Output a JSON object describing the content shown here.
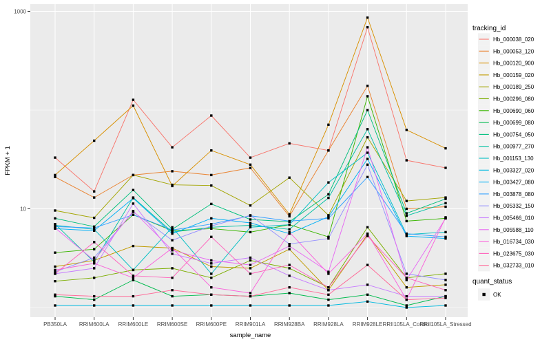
{
  "chart_data": {
    "type": "line",
    "title": "",
    "xlabel": "sample_name",
    "ylabel": "FPKM + 1",
    "y_scale": "log10",
    "ylim": [
      1,
      1000
    ],
    "y_tick_labels": [
      "1000",
      "10"
    ],
    "y_major_gridlines": [
      10,
      1000
    ],
    "y_minor_gridlines": [
      1,
      100
    ],
    "grid": "on",
    "legend_position": "right",
    "legend_title": "tracking_id",
    "point_marker": "filled-black-square",
    "categories": [
      "PB350LA",
      "RRIM600LA",
      "RRIM600LE",
      "RRIM600SE",
      "RRIM600PE",
      "RRIM901LA",
      "RRIM928BA",
      "RRIM928LA",
      "RRIM928LE",
      "RRII105LA_Control",
      "RRII105LA_Stressed"
    ],
    "series": [
      {
        "name": "Hb_000038_020",
        "color": "#F8766D",
        "values": [
          33,
          15,
          127,
          42,
          88,
          33,
          46,
          39,
          690,
          31,
          26
        ]
      },
      {
        "name": "Hb_000053_120",
        "color": "#EA8331",
        "values": [
          21,
          13,
          22,
          24,
          22,
          26,
          8.4,
          39,
          176,
          10,
          10.5
        ]
      },
      {
        "name": "Hb_000120_900",
        "color": "#D89000",
        "values": [
          22,
          49,
          111,
          17,
          39,
          28,
          8.8,
          71,
          865,
          63,
          41
        ]
      },
      {
        "name": "Hb_000159_020",
        "color": "#C09B00",
        "values": [
          2.6,
          3.0,
          4.2,
          4.0,
          2.6,
          2.5,
          3.9,
          1.5,
          5.5,
          1.6,
          1.7
        ]
      },
      {
        "name": "Hb_000189_250",
        "color": "#A3A500",
        "values": [
          9.6,
          8.1,
          22,
          17.5,
          17.2,
          10.8,
          20.7,
          8.6,
          53,
          12,
          13
        ]
      },
      {
        "name": "Hb_000296_080",
        "color": "#7CAE00",
        "values": [
          1.85,
          2.0,
          2.4,
          2.5,
          2.0,
          3.0,
          2.5,
          1.6,
          6.5,
          2.0,
          2.2
        ]
      },
      {
        "name": "Hb_000690_060",
        "color": "#39B600",
        "values": [
          3.6,
          3.9,
          8.7,
          6.0,
          6.3,
          5.8,
          6.9,
          5.2,
          138,
          7.5,
          8.0
        ]
      },
      {
        "name": "Hb_000699_080",
        "color": "#00BB4E",
        "values": [
          1.3,
          1.2,
          1.9,
          1.3,
          1.35,
          1.3,
          1.4,
          1.2,
          1.35,
          1.05,
          1.3
        ]
      },
      {
        "name": "Hb_000754_050",
        "color": "#00BF7D",
        "values": [
          8.0,
          6.6,
          15.5,
          6.2,
          11.2,
          7.8,
          7.4,
          14,
          100,
          9.0,
          12.6
        ]
      },
      {
        "name": "Hb_000977_270",
        "color": "#00C1A3",
        "values": [
          7.0,
          2.9,
          13,
          5.8,
          6.5,
          6.8,
          6.2,
          12.9,
          64,
          8.5,
          11.4
        ]
      },
      {
        "name": "Hb_001153_130",
        "color": "#00BFC4",
        "values": [
          6.8,
          6.2,
          2.4,
          6.5,
          2.2,
          6.5,
          6.9,
          18.5,
          37,
          5.5,
          5.8
        ]
      },
      {
        "name": "Hb_003327_020",
        "color": "#00BAE0",
        "values": [
          1.05,
          1.05,
          1.05,
          1.05,
          1.05,
          1.05,
          1.05,
          1.05,
          1.15,
          1.0,
          1.05
        ]
      },
      {
        "name": "Hb_003427_080",
        "color": "#00B0F6",
        "values": [
          6.3,
          6.0,
          12.8,
          5.6,
          8.0,
          7.2,
          5.6,
          8.3,
          32,
          5.3,
          5.0
        ]
      },
      {
        "name": "Hb_003878_080",
        "color": "#35A2FF",
        "values": [
          6.6,
          6.4,
          8.7,
          6.1,
          7.0,
          8.5,
          7.5,
          8.0,
          21,
          5.6,
          5.2
        ]
      },
      {
        "name": "Hb_005332_150",
        "color": "#9590FF",
        "values": [
          2.3,
          3.2,
          9.3,
          4.8,
          6.7,
          8.6,
          4.4,
          5.0,
          28,
          2.2,
          1.9
        ]
      },
      {
        "name": "Hb_005466_010",
        "color": "#C77CFF",
        "values": [
          2.2,
          2.5,
          11.3,
          3.5,
          2.8,
          3.2,
          2.1,
          1.5,
          1.7,
          1.3,
          1.3
        ]
      },
      {
        "name": "Hb_005588_110",
        "color": "#E76BF3",
        "values": [
          6.4,
          3.0,
          9.5,
          3.8,
          3.0,
          2.7,
          4.2,
          2.3,
          42,
          1.9,
          8.0
        ]
      },
      {
        "name": "Hb_016734_030",
        "color": "#FA62DB",
        "values": [
          2.4,
          2.8,
          2.0,
          4.0,
          1.6,
          1.4,
          5.8,
          2.2,
          5.6,
          1.2,
          8.2
        ]
      },
      {
        "name": "Hb_023675_030",
        "color": "#FF62BC",
        "values": [
          2.2,
          4.6,
          2.1,
          2.0,
          5.2,
          2.2,
          2.7,
          1.6,
          5.3,
          2.0,
          1.5
        ]
      },
      {
        "name": "Hb_032733_010",
        "color": "#FF6A98",
        "values": [
          1.35,
          1.3,
          1.3,
          1.5,
          1.35,
          1.3,
          1.6,
          1.35,
          2.7,
          1.2,
          1.25
        ]
      }
    ],
    "legend2": {
      "title": "quant_status",
      "items": [
        {
          "label": "OK",
          "marker": "filled-black-square",
          "color": "#000000"
        }
      ]
    },
    "style": {
      "panel_bg": "#EBEBEB",
      "grid_color": "#FFFFFF",
      "page_bg": "#FFFFFF",
      "tick_label_color": "#4D4D4D",
      "axis_title_color": "#000000",
      "legend_key_bg": "#F2F2F2",
      "marker_color": "#000000"
    }
  }
}
